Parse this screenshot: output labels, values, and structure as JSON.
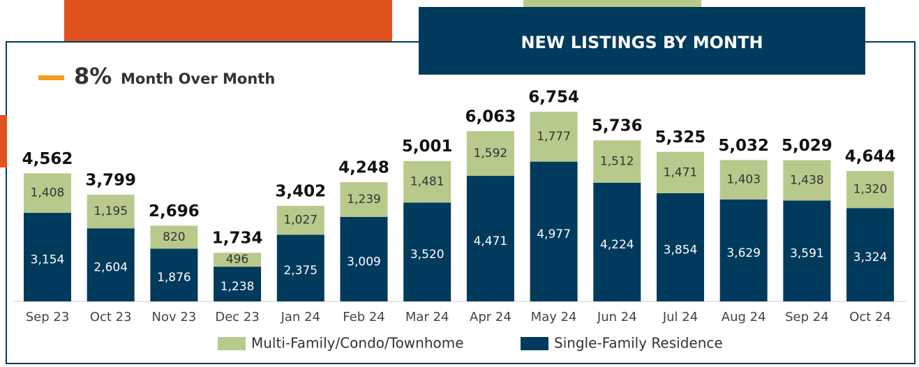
{
  "chart_data": {
    "type": "stacked_bar",
    "title": "NEW LISTINGS BY MONTH",
    "change_value": "8%",
    "change_label": "Month Over Month",
    "categories": [
      "Sep 23",
      "Oct 23",
      "Nov 23",
      "Dec 23",
      "Jan 24",
      "Feb 24",
      "Mar 24",
      "Apr 24",
      "May 24",
      "Jun 24",
      "Jul 24",
      "Aug 24",
      "Sep 24",
      "Oct 24"
    ],
    "series": [
      {
        "name": "Single-Family Residence",
        "color": "#003a5c",
        "values": [
          3154,
          2604,
          1876,
          1238,
          2375,
          3009,
          3520,
          4471,
          4977,
          4224,
          3854,
          3629,
          3591,
          3324
        ],
        "value_labels": [
          "3,154",
          "2,604",
          "1,876",
          "1,238",
          "2,375",
          "3,009",
          "3,520",
          "4,471",
          "4,977",
          "4,224",
          "3,854",
          "3,629",
          "3,591",
          "3,324"
        ]
      },
      {
        "name": "Multi-Family/Condo/Townhome",
        "color": "#b8c98c",
        "values": [
          1408,
          1195,
          820,
          496,
          1027,
          1239,
          1481,
          1592,
          1777,
          1512,
          1471,
          1403,
          1438,
          1320
        ],
        "value_labels": [
          "1,408",
          "1,195",
          "820",
          "496",
          "1,027",
          "1,239",
          "1,481",
          "1,592",
          "1,777",
          "1,512",
          "1,471",
          "1,403",
          "1,438",
          "1,320"
        ]
      }
    ],
    "totals": [
      4562,
      3799,
      2696,
      1734,
      3402,
      4248,
      5001,
      6063,
      6754,
      5736,
      5325,
      5032,
      5029,
      4644
    ],
    "total_labels": [
      "4,562",
      "3,799",
      "2,696",
      "1,734",
      "3,402",
      "4,248",
      "5,001",
      "6,063",
      "6,754",
      "5,736",
      "5,325",
      "5,032",
      "5,029",
      "4,644"
    ],
    "ylim": [
      0,
      8000
    ]
  }
}
